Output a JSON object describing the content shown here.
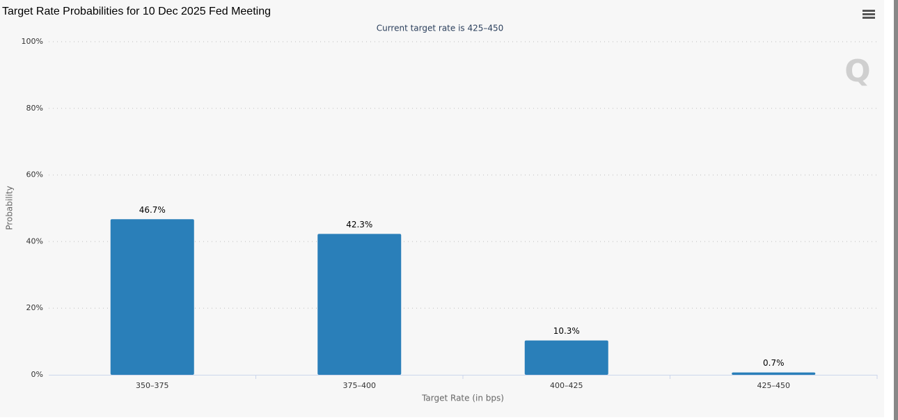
{
  "chart_data": {
    "type": "bar",
    "title": "Target Rate Probabilities for 10 Dec 2025 Fed Meeting",
    "subtitle": "Current target rate is 425–450",
    "x_label": "Target Rate (in bps)",
    "y_label": "Probability",
    "categories": [
      "350–375",
      "375–400",
      "400–425",
      "425–450"
    ],
    "values": [
      46.7,
      42.3,
      10.3,
      0.7
    ],
    "value_labels": [
      "46.7%",
      "42.3%",
      "10.3%",
      "0.7%"
    ],
    "color": "#2a7fb9",
    "ylim": [
      0,
      100
    ],
    "yticks": [
      {
        "value": 0,
        "label": "0%"
      },
      {
        "value": 20,
        "label": "20%"
      },
      {
        "value": 40,
        "label": "40%"
      },
      {
        "value": 60,
        "label": "60%"
      },
      {
        "value": 80,
        "label": "80%"
      },
      {
        "value": 100,
        "label": "100%"
      }
    ],
    "grid": true
  }
}
